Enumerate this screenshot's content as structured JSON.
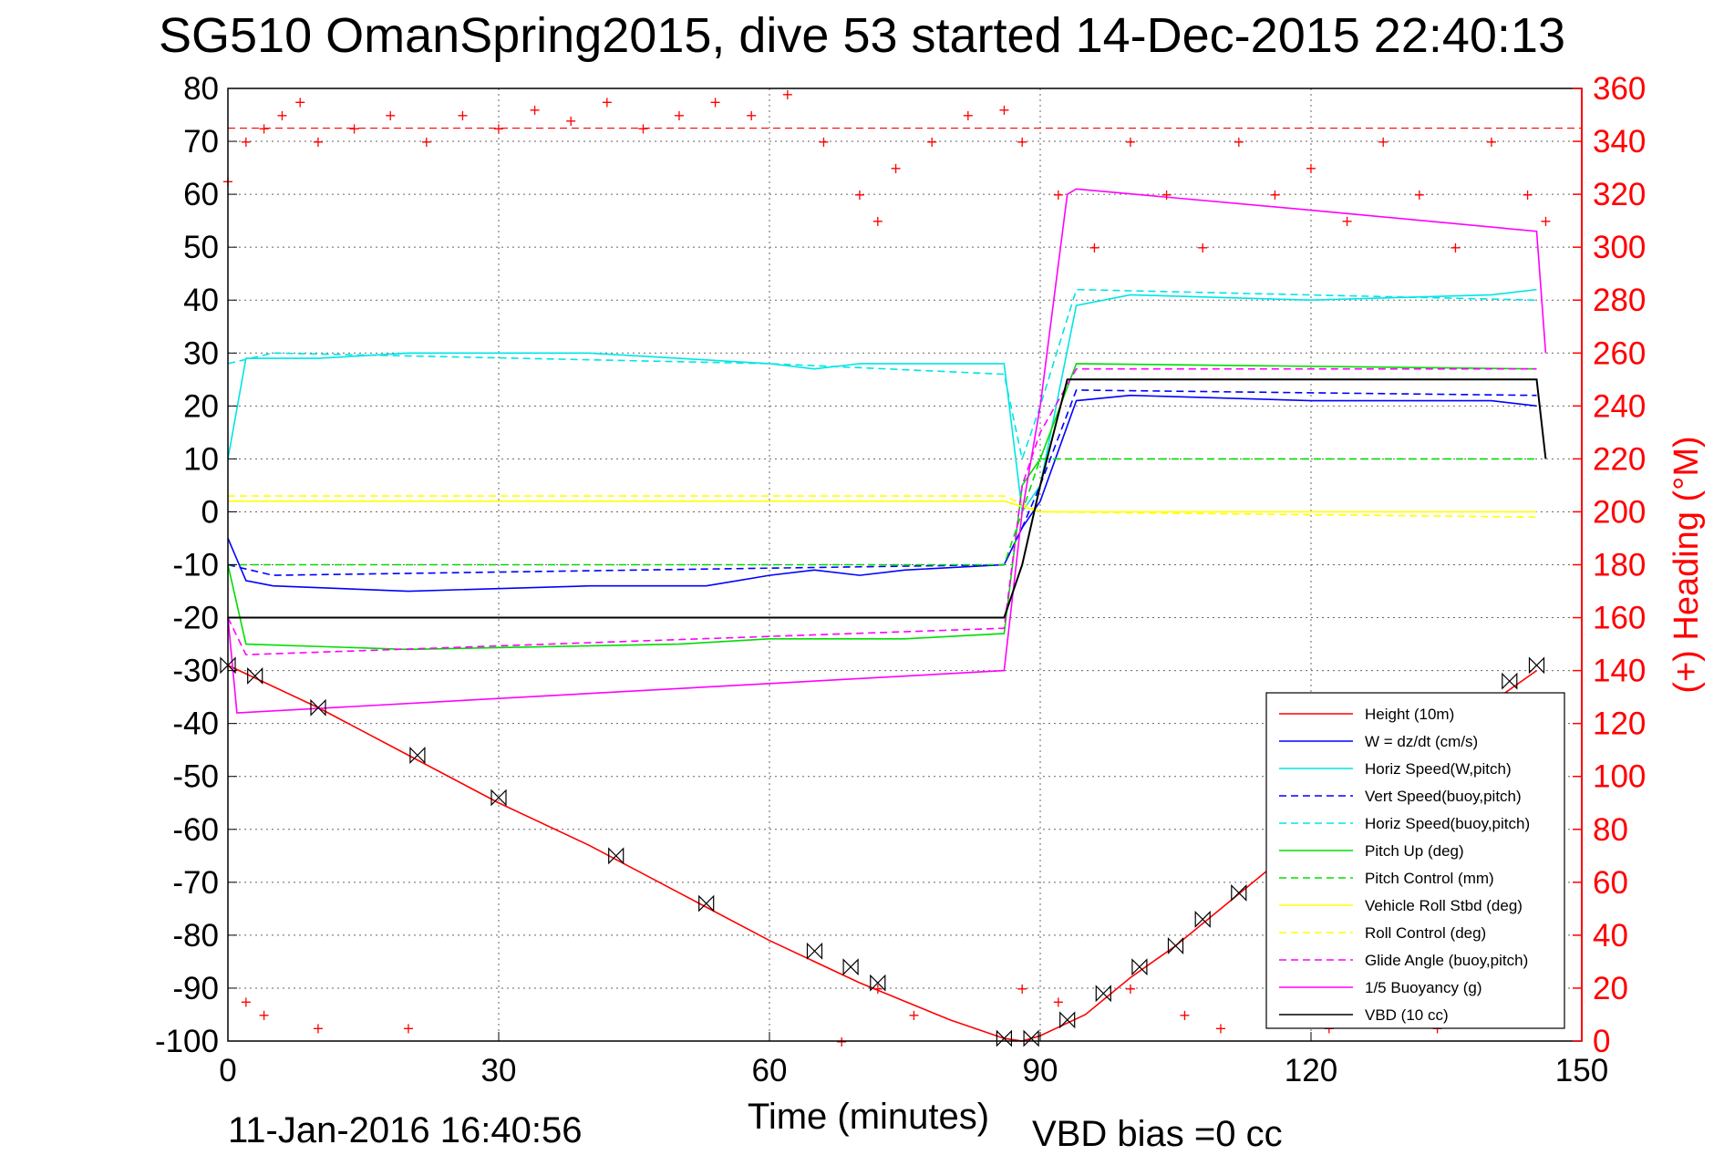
{
  "title": "SG510 OmanSpring2015, dive 53 started 14-Dec-2015 22:40:13",
  "footer": {
    "date": "11-Jan-2016 16:40:56",
    "vbd_bias": "VBD bias =0 cc"
  },
  "colors": {
    "height": "#ff0000",
    "w": "#0000ff",
    "horiz": "#00e5e5",
    "pitch": "#00dd00",
    "roll": "#ffff00",
    "glide": "#ff00ff",
    "buoy": "#ff00ff",
    "vbd": "#000000",
    "heading": "#ff0000"
  },
  "chart_data": {
    "type": "line",
    "xlabel": "Time (minutes)",
    "ylabel_right": "(+) Heading (°M)",
    "xlim": [
      0,
      150
    ],
    "ylim": [
      -100,
      80
    ],
    "ylim_right": [
      0,
      360
    ],
    "x_ticks": [
      0,
      30,
      60,
      90,
      120,
      150
    ],
    "y_ticks": [
      80,
      70,
      60,
      50,
      40,
      30,
      20,
      10,
      0,
      -10,
      -20,
      -30,
      -40,
      -50,
      -60,
      -70,
      -80,
      -90,
      -100
    ],
    "y_right_ticks": [
      360,
      340,
      320,
      300,
      280,
      260,
      240,
      220,
      200,
      180,
      160,
      140,
      120,
      100,
      80,
      60,
      40,
      20,
      0
    ],
    "grid": true,
    "legend_position": "bottom-right",
    "series": [
      {
        "name": "Height (10m)",
        "style": "solid",
        "color": "#ff0000",
        "x": [
          0,
          10,
          20,
          30,
          40,
          50,
          60,
          70,
          80,
          86,
          88,
          90,
          95,
          100,
          105,
          110,
          115,
          120,
          125,
          130,
          135,
          140,
          145
        ],
        "y": [
          -29,
          -37,
          -46,
          -55,
          -63,
          -72,
          -81,
          -89,
          -96,
          -99.5,
          -100,
          -99,
          -95,
          -88,
          -82,
          -75,
          -68,
          -62,
          -56,
          -49,
          -43,
          -36,
          -30
        ]
      },
      {
        "name": "W = dz/dt (cm/s)",
        "style": "solid",
        "color": "#0000ff",
        "x": [
          0,
          2,
          5,
          20,
          40,
          53,
          60,
          65,
          70,
          75,
          86,
          88,
          90,
          94,
          100,
          120,
          140,
          145
        ],
        "y": [
          -5,
          -13,
          -14,
          -15,
          -14,
          -14,
          -12,
          -11,
          -12,
          -11,
          -10,
          -3,
          2,
          21,
          22,
          21,
          21,
          20
        ]
      },
      {
        "name": "Horiz Speed(W,pitch)",
        "style": "solid",
        "color": "#00e5e5",
        "x": [
          0,
          2,
          10,
          20,
          30,
          40,
          50,
          60,
          65,
          70,
          75,
          86,
          88,
          90,
          94,
          100,
          120,
          140,
          145
        ],
        "y": [
          10,
          29,
          29,
          30,
          30,
          30,
          29,
          28,
          27,
          28,
          28,
          28,
          0,
          5,
          39,
          41,
          40,
          41,
          42
        ]
      },
      {
        "name": "Vert Speed(buoy,pitch)",
        "style": "dashed",
        "color": "#0000ff",
        "x": [
          0,
          5,
          86,
          88,
          90,
          94,
          145
        ],
        "y": [
          -10,
          -12,
          -10,
          -3,
          5,
          23,
          22
        ]
      },
      {
        "name": "Horiz Speed(buoy,pitch)",
        "style": "dashed",
        "color": "#00e5e5",
        "x": [
          0,
          5,
          60,
          86,
          88,
          90,
          94,
          145
        ],
        "y": [
          28,
          30,
          28,
          26,
          10,
          20,
          42,
          40
        ]
      },
      {
        "name": "Pitch Up (deg)",
        "style": "solid",
        "color": "#00dd00",
        "x": [
          0,
          2,
          20,
          50,
          60,
          75,
          86,
          88,
          90,
          94,
          145
        ],
        "y": [
          -10,
          -25,
          -26,
          -25,
          -24,
          -24,
          -23,
          5,
          10,
          28,
          27
        ]
      },
      {
        "name": "Pitch Control (mm)",
        "style": "dashed",
        "color": "#00dd00",
        "x": [
          0,
          86,
          88,
          90,
          145
        ],
        "y": [
          -10,
          -10,
          0,
          10,
          10
        ]
      },
      {
        "name": "Vehicle Roll Stbd (deg)",
        "style": "solid",
        "color": "#ffff00",
        "x": [
          0,
          86,
          90,
          145
        ],
        "y": [
          2,
          2,
          0,
          0
        ]
      },
      {
        "name": "Roll Control (deg)",
        "style": "dashed",
        "color": "#ffff00",
        "x": [
          0,
          86,
          90,
          145
        ],
        "y": [
          3,
          3,
          0,
          -1
        ]
      },
      {
        "name": "Glide Angle (buoy,pitch)",
        "style": "dashed",
        "color": "#ff00ff",
        "x": [
          0,
          2,
          86,
          88,
          90,
          94,
          145
        ],
        "y": [
          -20,
          -27,
          -22,
          5,
          15,
          27,
          27
        ]
      },
      {
        "name": "1/5 Buoyancy (g)",
        "style": "solid",
        "color": "#ff00ff",
        "x": [
          0,
          1,
          86,
          88,
          90,
          93,
          94,
          120,
          145,
          146
        ],
        "y": [
          -20,
          -38,
          -30,
          0,
          20,
          60,
          61,
          57,
          53,
          30
        ]
      },
      {
        "name": "VBD (10 cc)",
        "style": "solid",
        "color": "#000000",
        "x": [
          0,
          86,
          88,
          90,
          93,
          145,
          146
        ],
        "y": [
          -20,
          -20,
          -10,
          5,
          25,
          25,
          10
        ]
      }
    ],
    "heading_points": [
      [
        0,
        325
      ],
      [
        2,
        340
      ],
      [
        4,
        345
      ],
      [
        6,
        350
      ],
      [
        8,
        355
      ],
      [
        10,
        340
      ],
      [
        14,
        345
      ],
      [
        18,
        350
      ],
      [
        22,
        340
      ],
      [
        26,
        350
      ],
      [
        30,
        345
      ],
      [
        34,
        352
      ],
      [
        38,
        348
      ],
      [
        42,
        355
      ],
      [
        46,
        345
      ],
      [
        50,
        350
      ],
      [
        54,
        355
      ],
      [
        58,
        350
      ],
      [
        62,
        358
      ],
      [
        66,
        340
      ],
      [
        70,
        320
      ],
      [
        72,
        310
      ],
      [
        74,
        330
      ],
      [
        78,
        340
      ],
      [
        82,
        350
      ],
      [
        86,
        352
      ],
      [
        88,
        340
      ],
      [
        92,
        320
      ],
      [
        96,
        300
      ],
      [
        100,
        340
      ],
      [
        104,
        320
      ],
      [
        108,
        300
      ],
      [
        112,
        340
      ],
      [
        116,
        320
      ],
      [
        120,
        330
      ],
      [
        124,
        310
      ],
      [
        128,
        340
      ],
      [
        132,
        320
      ],
      [
        136,
        300
      ],
      [
        140,
        340
      ],
      [
        144,
        320
      ],
      [
        146,
        310
      ],
      [
        2,
        15
      ],
      [
        4,
        10
      ],
      [
        10,
        5
      ],
      [
        20,
        5
      ],
      [
        68,
        0
      ],
      [
        72,
        20
      ],
      [
        76,
        10
      ],
      [
        88,
        20
      ],
      [
        92,
        15
      ],
      [
        100,
        20
      ],
      [
        106,
        10
      ],
      [
        110,
        5
      ],
      [
        116,
        10
      ],
      [
        122,
        5
      ],
      [
        128,
        10
      ],
      [
        134,
        5
      ],
      [
        140,
        10
      ]
    ],
    "heading_reference": 345,
    "markers": {
      "x": [
        0,
        3,
        10,
        21,
        30,
        43,
        53,
        65,
        69,
        72,
        86,
        89,
        93,
        97,
        101,
        105,
        108,
        112,
        116,
        120,
        124,
        128,
        132,
        136,
        142,
        145
      ],
      "y": [
        -29,
        -31,
        -37,
        -46,
        -54,
        -65,
        -74,
        -83,
        -86,
        -89,
        -99.5,
        -99.5,
        -96,
        -91,
        -86,
        -82,
        -77,
        -72,
        -68,
        -64,
        -58,
        -52,
        -47,
        -41,
        -32,
        -29
      ]
    }
  }
}
